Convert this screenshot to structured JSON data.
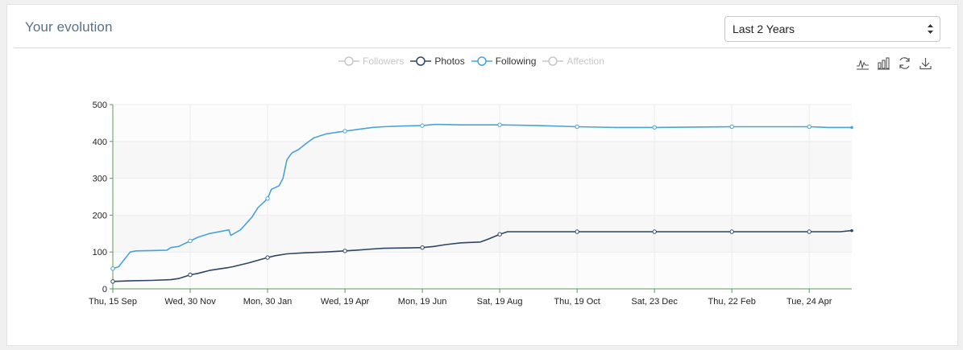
{
  "panel": {
    "title": "Your evolution"
  },
  "range_select": {
    "value": "Last 2 Years"
  },
  "toolbox": {
    "icons": [
      "line-chart-icon",
      "bar-chart-icon",
      "restore-icon",
      "download-icon"
    ]
  },
  "colors": {
    "following": "#4aa3d8",
    "photos": "#2f4564",
    "disabled": "#c7c7c7",
    "axis": "#5a9a5a",
    "band": "#f7f7f7"
  },
  "chart_data": {
    "type": "line",
    "title": "",
    "xlabel": "",
    "ylabel": "",
    "ylim": [
      0,
      500
    ],
    "yticks": [
      0,
      100,
      200,
      300,
      400,
      500
    ],
    "xlim": [
      0,
      19.1
    ],
    "xticks": [
      {
        "x": 0,
        "label": "Thu, 15 Sep"
      },
      {
        "x": 2,
        "label": "Wed, 30 Nov"
      },
      {
        "x": 4,
        "label": "Mon, 30 Jan"
      },
      {
        "x": 6,
        "label": "Wed, 19 Apr"
      },
      {
        "x": 8,
        "label": "Mon, 19 Jun"
      },
      {
        "x": 10,
        "label": "Sat, 19 Aug"
      },
      {
        "x": 12,
        "label": "Thu, 19 Oct"
      },
      {
        "x": 14,
        "label": "Sat, 23 Dec"
      },
      {
        "x": 16,
        "label": "Thu, 22 Feb"
      },
      {
        "x": 18,
        "label": "Tue, 24 Apr"
      }
    ],
    "legend": [
      {
        "name": "Followers",
        "enabled": false
      },
      {
        "name": "Photos",
        "enabled": true
      },
      {
        "name": "Following",
        "enabled": true
      },
      {
        "name": "Affection",
        "enabled": false
      }
    ],
    "series": [
      {
        "name": "Following",
        "x": [
          0,
          0.15,
          0.3,
          0.45,
          0.6,
          1.0,
          1.4,
          1.5,
          1.7,
          2.0,
          2.2,
          2.5,
          3.0,
          3.05,
          3.3,
          3.6,
          3.75,
          3.9,
          4.0,
          4.1,
          4.3,
          4.4,
          4.5,
          4.6,
          4.65,
          4.8,
          5.0,
          5.2,
          5.5,
          5.8,
          6.0,
          6.3,
          6.7,
          7.0,
          7.5,
          8.0,
          8.3,
          8.5,
          9.0,
          9.5,
          10.0,
          11.0,
          12.0,
          13.0,
          14.0,
          15.0,
          16.0,
          17.0,
          18.0,
          18.5,
          19.1
        ],
        "values": [
          55,
          60,
          80,
          100,
          103,
          104,
          105,
          112,
          115,
          130,
          140,
          150,
          160,
          145,
          160,
          195,
          220,
          235,
          245,
          270,
          280,
          300,
          350,
          365,
          370,
          378,
          395,
          410,
          420,
          425,
          428,
          432,
          438,
          440,
          442,
          443,
          446,
          446,
          445,
          445,
          445,
          443,
          440,
          438,
          438,
          439,
          440,
          440,
          440,
          438,
          438
        ],
        "markers_x": [
          0,
          2,
          4,
          6,
          8,
          10,
          12,
          14,
          16,
          18
        ]
      },
      {
        "name": "Photos",
        "x": [
          0,
          0.5,
          1.0,
          1.5,
          1.7,
          2.0,
          2.2,
          2.5,
          3.0,
          3.1,
          3.5,
          4.0,
          4.2,
          4.5,
          5.0,
          5.5,
          6.0,
          6.3,
          6.7,
          7.0,
          7.5,
          8.0,
          8.3,
          8.6,
          9.0,
          9.5,
          9.7,
          10.0,
          10.2,
          11.0,
          12.0,
          13.0,
          14.0,
          15.0,
          16.0,
          17.0,
          18.0,
          18.8,
          19.1
        ],
        "values": [
          20,
          22,
          23,
          25,
          28,
          38,
          42,
          50,
          58,
          60,
          70,
          85,
          90,
          95,
          98,
          100,
          103,
          105,
          108,
          110,
          111,
          112,
          115,
          120,
          125,
          127,
          135,
          148,
          155,
          155,
          155,
          155,
          155,
          155,
          155,
          155,
          155,
          155,
          158
        ],
        "markers_x": [
          0,
          2,
          4,
          6,
          8,
          10,
          12,
          14,
          16,
          18
        ]
      }
    ]
  }
}
